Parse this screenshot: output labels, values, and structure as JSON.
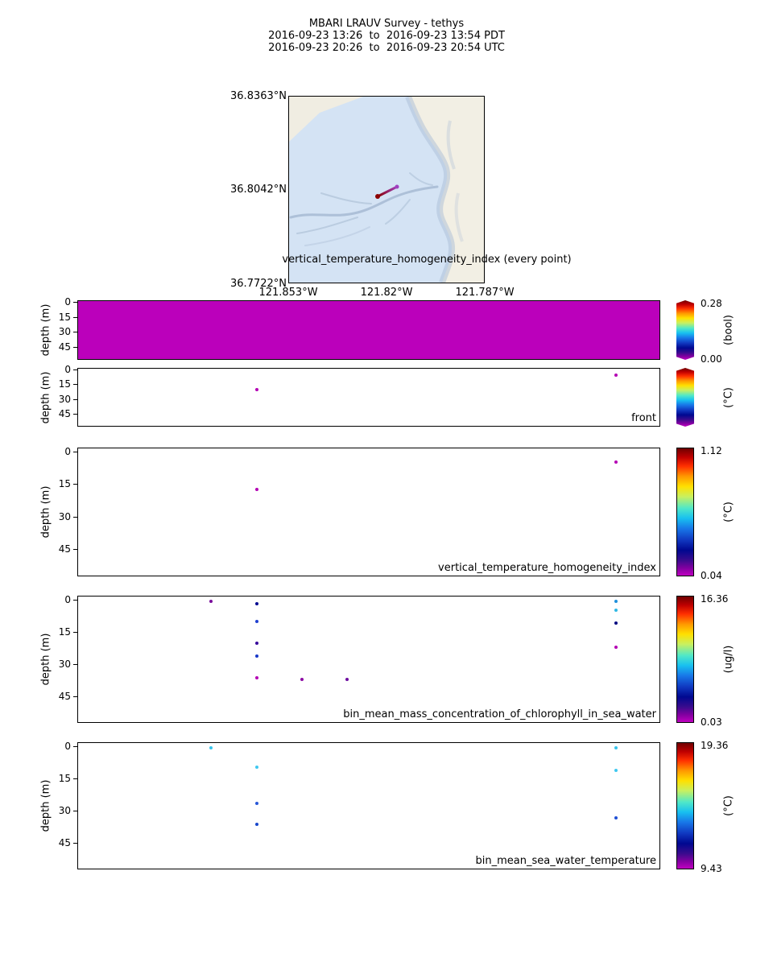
{
  "header": {
    "line1": "MBARI LRAUV Survey - tethys",
    "line2": "2016-09-23 13:26  to  2016-09-23 13:54 PDT",
    "line3": "2016-09-23 20:26  to  2016-09-23 20:54 UTC"
  },
  "map": {
    "lat_labels": [
      "36.8363°N",
      "36.8042°N",
      "36.7722°N"
    ],
    "lon_labels": [
      "121.853°W",
      "121.82°W",
      "121.787°W"
    ],
    "track": {
      "start_color": "#8b0000",
      "end_color": "#a040c0"
    }
  },
  "chart_data": {
    "type": "scatter",
    "title": "MBARI LRAUV Survey - tethys",
    "ylabel": "depth (m)",
    "panels": [
      {
        "name": "vertical_temperature_homogeneity_index (every point)",
        "ylabel": "depth (m)",
        "ylim": [
          0,
          55
        ],
        "yticks": [
          0,
          15,
          30,
          45
        ],
        "fill": "#bb00bb",
        "points": [],
        "colorbar": {
          "max": "0.28",
          "min": "0.00",
          "unit": "(bool)"
        }
      },
      {
        "name": "front",
        "ylabel": "depth (m)",
        "ylim": [
          0,
          55
        ],
        "yticks": [
          0,
          15,
          30,
          45
        ],
        "points": [
          {
            "x": 0.308,
            "depth": 20,
            "color": "#b400b4"
          },
          {
            "x": 0.925,
            "depth": 5,
            "color": "#b400b4"
          }
        ],
        "colorbar": {
          "max": "",
          "min": "",
          "unit": "(°C)"
        }
      },
      {
        "name": "vertical_temperature_homogeneity_index",
        "ylabel": "depth (m)",
        "ylim": [
          0,
          55
        ],
        "yticks": [
          0,
          15,
          30,
          45
        ],
        "points": [
          {
            "x": 0.308,
            "depth": 17,
            "color": "#b400b4"
          },
          {
            "x": 0.925,
            "depth": 4.5,
            "color": "#b400b4"
          }
        ],
        "colorbar": {
          "max": "1.12",
          "min": "0.04",
          "unit": "(°C)"
        }
      },
      {
        "name": "bin_mean_mass_concentration_of_chlorophyll_in_sea_water",
        "ylabel": "depth (m)",
        "ylim": [
          0,
          55
        ],
        "yticks": [
          0,
          15,
          30,
          45
        ],
        "points": [
          {
            "x": 0.229,
            "depth": 0.5,
            "color": "#7a0e9c"
          },
          {
            "x": 0.308,
            "depth": 1.5,
            "color": "#000890"
          },
          {
            "x": 0.308,
            "depth": 10,
            "color": "#2040d0"
          },
          {
            "x": 0.308,
            "depth": 20,
            "color": "#38089c"
          },
          {
            "x": 0.308,
            "depth": 26,
            "color": "#1838c8"
          },
          {
            "x": 0.308,
            "depth": 36,
            "color": "#b400b4"
          },
          {
            "x": 0.385,
            "depth": 37,
            "color": "#8c0aa4"
          },
          {
            "x": 0.463,
            "depth": 37,
            "color": "#6e0da0"
          },
          {
            "x": 0.925,
            "depth": 0.5,
            "color": "#2090dc"
          },
          {
            "x": 0.925,
            "depth": 4.5,
            "color": "#30b8e4"
          },
          {
            "x": 0.925,
            "depth": 10.5,
            "color": "#000880"
          },
          {
            "x": 0.925,
            "depth": 22,
            "color": "#b400b4"
          }
        ],
        "colorbar": {
          "max": "16.36",
          "min": "0.03",
          "unit": "(ug/l)"
        }
      },
      {
        "name": "bin_mean_sea_water_temperature",
        "ylabel": "depth (m)",
        "ylim": [
          0,
          55
        ],
        "yticks": [
          0,
          15,
          30,
          45
        ],
        "points": [
          {
            "x": 0.229,
            "depth": 0.5,
            "color": "#38c4ec"
          },
          {
            "x": 0.308,
            "depth": 9.5,
            "color": "#40c8f0"
          },
          {
            "x": 0.308,
            "depth": 26.5,
            "color": "#2858d8"
          },
          {
            "x": 0.308,
            "depth": 36,
            "color": "#1848cc"
          },
          {
            "x": 0.925,
            "depth": 0.5,
            "color": "#38c4ec"
          },
          {
            "x": 0.925,
            "depth": 11,
            "color": "#40c8f0"
          },
          {
            "x": 0.925,
            "depth": 33,
            "color": "#2050d4"
          }
        ],
        "colorbar": {
          "max": "19.36",
          "min": "9.43",
          "unit": "(°C)"
        }
      }
    ]
  }
}
